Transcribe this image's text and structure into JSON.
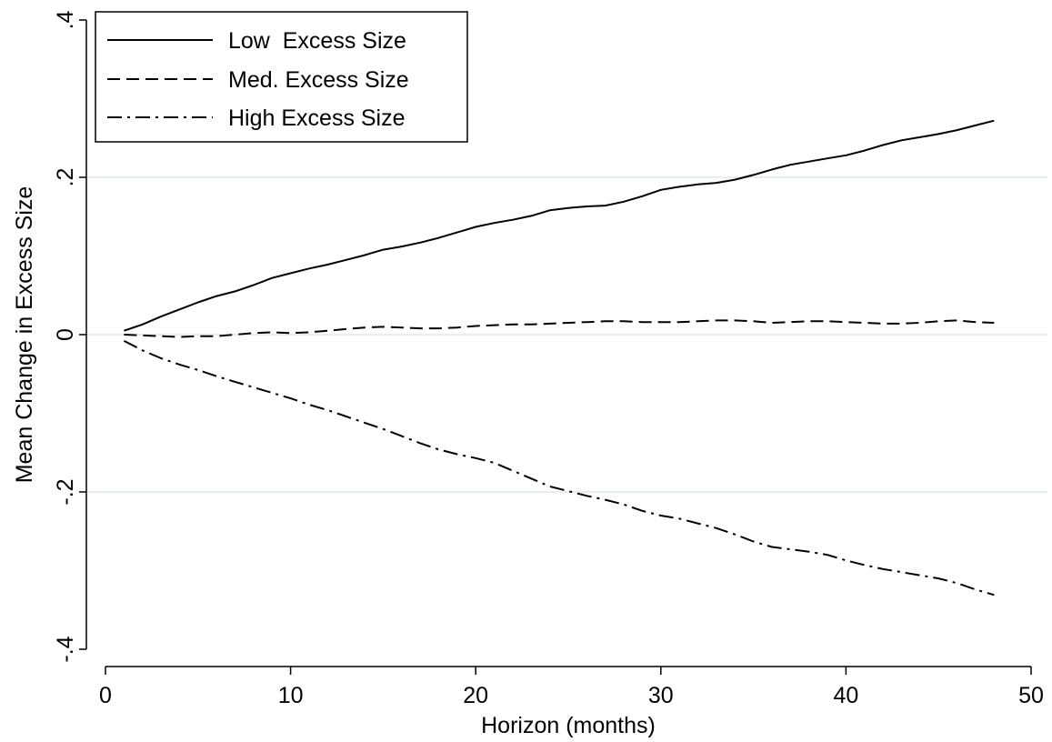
{
  "chart_data": {
    "type": "line",
    "xlabel": "Horizon (months)",
    "ylabel": "Mean Change in Excess Size",
    "xlim": [
      0,
      50
    ],
    "ylim": [
      -0.4,
      0.4
    ],
    "x_ticks": [
      0,
      10,
      20,
      30,
      40,
      50
    ],
    "x_tick_labels": [
      "0",
      "10",
      "20",
      "30",
      "40",
      "50"
    ],
    "y_ticks": [
      -0.4,
      -0.2,
      0,
      0.2,
      0.4
    ],
    "y_tick_labels": [
      "-.4",
      "-.2",
      "0",
      ".2",
      ".4"
    ],
    "grid": "horizontal",
    "grid_color": "#dde8e8",
    "legend_position": "top-left",
    "x": [
      1,
      2,
      3,
      4,
      5,
      6,
      7,
      8,
      9,
      10,
      11,
      12,
      13,
      14,
      15,
      16,
      17,
      18,
      19,
      20,
      21,
      22,
      23,
      24,
      25,
      26,
      27,
      28,
      29,
      30,
      31,
      32,
      33,
      34,
      35,
      36,
      37,
      38,
      39,
      40,
      41,
      42,
      43,
      44,
      45,
      46,
      47,
      48
    ],
    "series": [
      {
        "name": "Low  Excess Size",
        "style": "solid",
        "values": [
          0.005,
          0.013,
          0.023,
          0.032,
          0.041,
          0.049,
          0.055,
          0.063,
          0.072,
          0.078,
          0.084,
          0.089,
          0.095,
          0.101,
          0.108,
          0.112,
          0.117,
          0.123,
          0.13,
          0.137,
          0.142,
          0.146,
          0.151,
          0.158,
          0.161,
          0.163,
          0.164,
          0.169,
          0.176,
          0.184,
          0.188,
          0.191,
          0.193,
          0.197,
          0.203,
          0.21,
          0.216,
          0.22,
          0.224,
          0.228,
          0.234,
          0.241,
          0.247,
          0.251,
          0.255,
          0.26,
          0.266,
          0.272
        ]
      },
      {
        "name": "Med. Excess Size",
        "style": "dashed",
        "values": [
          0.0,
          -0.001,
          -0.002,
          -0.003,
          -0.002,
          -0.002,
          0.0,
          0.002,
          0.003,
          0.002,
          0.003,
          0.005,
          0.007,
          0.009,
          0.01,
          0.009,
          0.008,
          0.008,
          0.009,
          0.011,
          0.012,
          0.013,
          0.013,
          0.014,
          0.015,
          0.016,
          0.017,
          0.017,
          0.016,
          0.016,
          0.016,
          0.017,
          0.018,
          0.018,
          0.017,
          0.015,
          0.016,
          0.017,
          0.017,
          0.016,
          0.015,
          0.014,
          0.014,
          0.015,
          0.017,
          0.018,
          0.016,
          0.015
        ]
      },
      {
        "name": "High Excess Size",
        "style": "dashdot",
        "values": [
          -0.008,
          -0.02,
          -0.03,
          -0.038,
          -0.045,
          -0.053,
          -0.06,
          -0.067,
          -0.074,
          -0.081,
          -0.089,
          -0.096,
          -0.104,
          -0.112,
          -0.12,
          -0.129,
          -0.138,
          -0.146,
          -0.152,
          -0.157,
          -0.163,
          -0.173,
          -0.183,
          -0.193,
          -0.199,
          -0.205,
          -0.21,
          -0.216,
          -0.224,
          -0.23,
          -0.234,
          -0.24,
          -0.246,
          -0.254,
          -0.263,
          -0.27,
          -0.273,
          -0.276,
          -0.28,
          -0.287,
          -0.293,
          -0.298,
          -0.302,
          -0.306,
          -0.31,
          -0.316,
          -0.324,
          -0.331
        ]
      }
    ]
  }
}
